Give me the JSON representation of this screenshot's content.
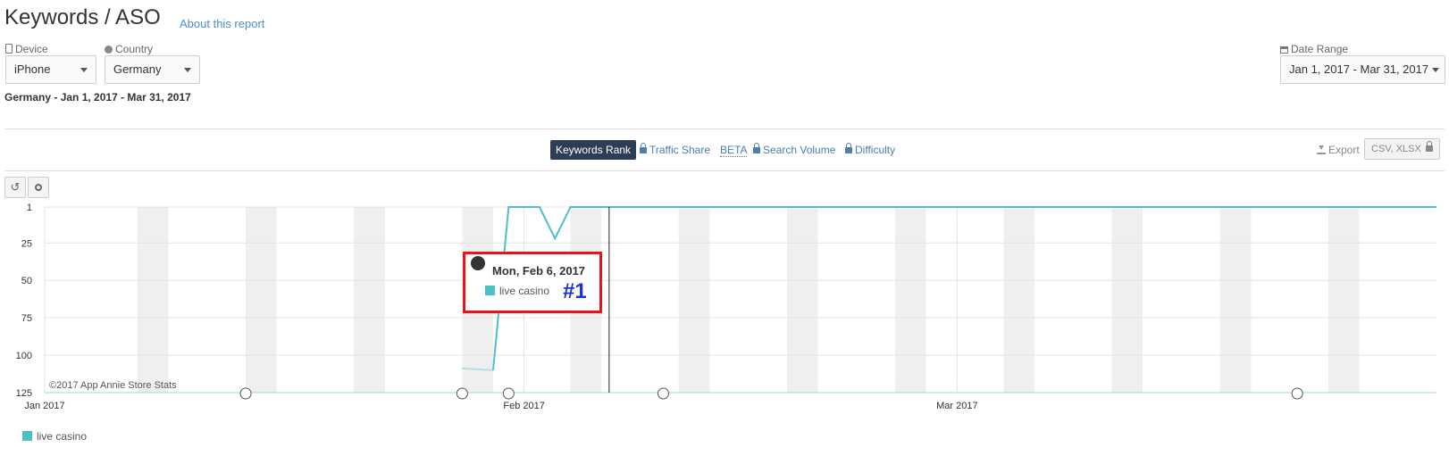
{
  "header": {
    "title": "Keywords / ASO",
    "about_link": "About this report"
  },
  "filters": {
    "device_label": "Device",
    "device_value": "iPhone",
    "country_label": "Country",
    "country_value": "Germany",
    "date_range_label": "Date Range",
    "date_range_value": "Jan 1, 2017 - Mar 31, 2017"
  },
  "subtitle": "Germany - Jan 1, 2017 - Mar 31, 2017",
  "tabs": {
    "keywords_rank": "Keywords Rank",
    "traffic_share": "Traffic Share",
    "beta": "BETA",
    "search_volume": "Search Volume",
    "difficulty": "Difficulty"
  },
  "export": {
    "label": "Export",
    "formats": "CSV, XLSX"
  },
  "colors": {
    "series": "#4bc0c8",
    "tab_active": "#2c3e56",
    "highlight_border": "#e8141c",
    "rank_text": "#1c35d6"
  },
  "chart_data": {
    "type": "line",
    "y_reversed": true,
    "ylim": [
      1,
      125
    ],
    "y_ticks": [
      "1",
      "25",
      "50",
      "75",
      "100",
      "125"
    ],
    "x_ticks": [
      "Jan 2017",
      "Feb 2017",
      "Mar 2017"
    ],
    "xlim": [
      "2017-01-01",
      "2017-03-31"
    ],
    "weekend_shading": true,
    "series": [
      {
        "name": "live casino",
        "points": [
          [
            "2017-01-30",
            110
          ],
          [
            "2017-01-31",
            1
          ],
          [
            "2017-02-02",
            1
          ],
          [
            "2017-02-03",
            22
          ],
          [
            "2017-02-04",
            1
          ],
          [
            "2017-02-06",
            1
          ],
          [
            "2017-02-15",
            1
          ],
          [
            "2017-03-01",
            1
          ],
          [
            "2017-03-15",
            1
          ],
          [
            "2017-03-31",
            1
          ]
        ]
      }
    ],
    "annotation_dates": [
      "2017-01-14",
      "2017-01-28",
      "2017-01-31",
      "2017-02-10",
      "2017-03-23"
    ],
    "credit": "©2017 App Annie Store Stats",
    "tooltip": {
      "date": "Mon, Feb 6, 2017",
      "date_value": "2017-02-06",
      "series": "live casino",
      "rank": "#1"
    },
    "legend": [
      "live casino"
    ]
  }
}
